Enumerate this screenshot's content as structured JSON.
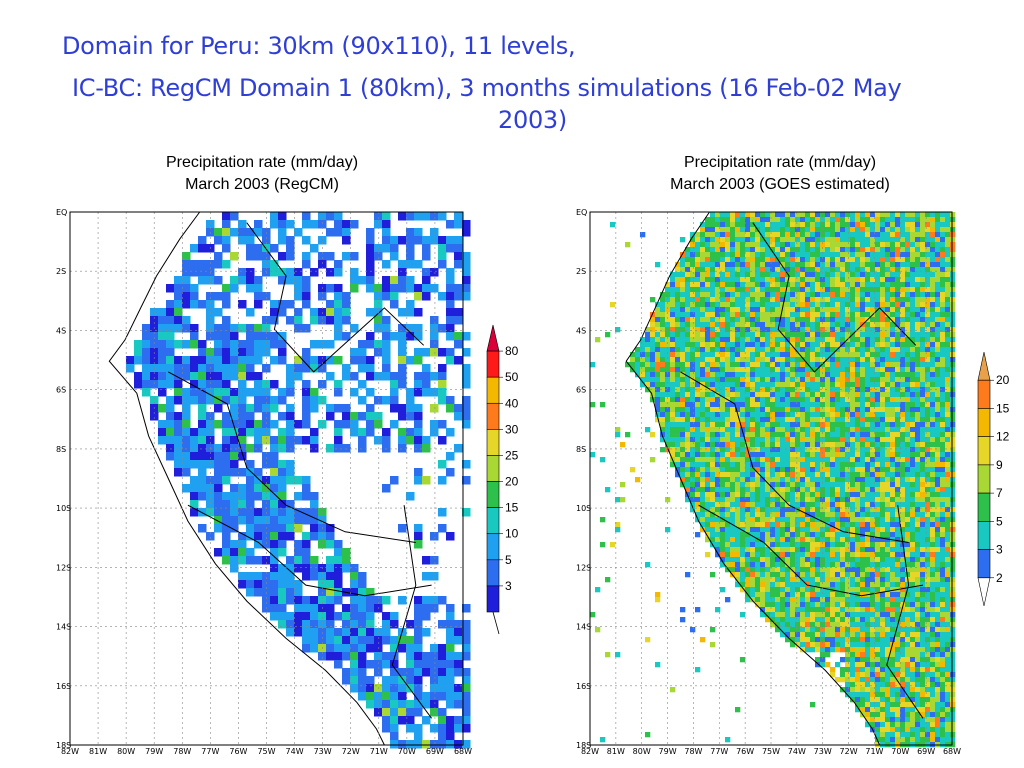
{
  "header": {
    "line1": "Domain for Peru: 30km (90x110), 11 levels,",
    "line2": "IC-BC: RegCM Domain 1 (80km),  3 months simulations (16 Feb-02 May",
    "line3": "2003)"
  },
  "maps": [
    {
      "title_line1": "Precipitation rate (mm/day)",
      "title_line2": "March 2003 (RegCM)",
      "lat_labels": [
        "EQ",
        "2S",
        "4S",
        "6S",
        "8S",
        "10S",
        "12S",
        "14S",
        "16S",
        "18S"
      ],
      "lon_labels": [
        "82W",
        "81W",
        "80W",
        "79W",
        "78W",
        "77W",
        "76W",
        "75W",
        "74W",
        "73W",
        "72W",
        "71W",
        "70W",
        "69W",
        "68W"
      ],
      "colorbar": {
        "levels": [
          "80",
          "50",
          "40",
          "30",
          "25",
          "20",
          "15",
          "10",
          "5",
          "3"
        ],
        "colors": [
          "#d9003a",
          "#ff1a1a",
          "#f5b800",
          "#ff7a1a",
          "#e6d628",
          "#a9d835",
          "#2dc04a",
          "#19c8c0",
          "#1fa0f0",
          "#2d6ef0",
          "#1e1edb"
        ]
      }
    },
    {
      "title_line1": "Precipitation rate (mm/day)",
      "title_line2": "March 2003 (GOES estimated)",
      "lat_labels": [
        "EQ",
        "2S",
        "4S",
        "6S",
        "8S",
        "10S",
        "12S",
        "14S",
        "16S",
        "18S"
      ],
      "lon_labels": [
        "82W",
        "81W",
        "80W",
        "79W",
        "78W",
        "77W",
        "76W",
        "75W",
        "74W",
        "73W",
        "72W",
        "71W",
        "70W",
        "69W",
        "68W"
      ],
      "colorbar": {
        "levels": [
          "20",
          "15",
          "12",
          "9",
          "7",
          "5",
          "3",
          "2"
        ],
        "colors": [
          "#e8a14a",
          "#ff7a1a",
          "#f5b800",
          "#e6d628",
          "#a9d835",
          "#2dc04a",
          "#19c8c0",
          "#2d6ef0",
          "#ffffff"
        ]
      }
    }
  ]
}
